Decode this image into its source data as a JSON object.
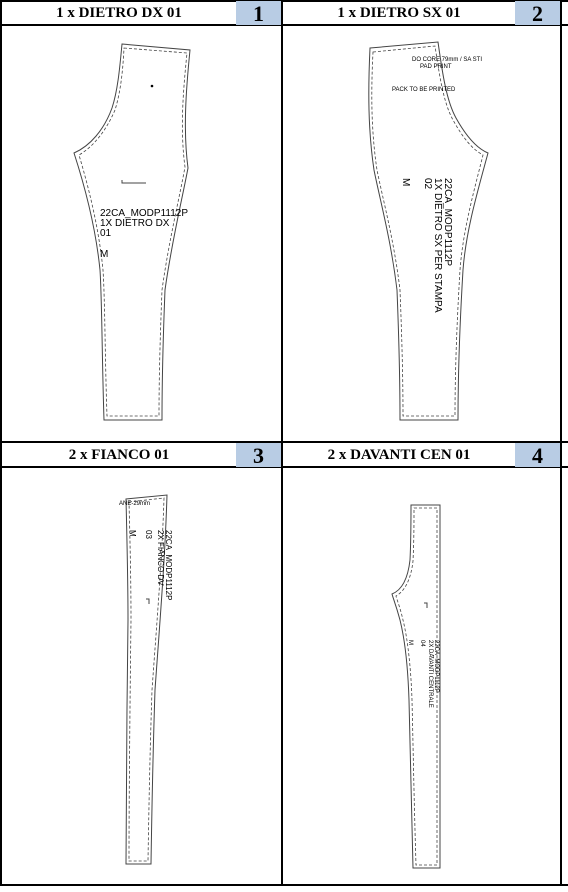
{
  "panels": [
    {
      "title": "1 x DIETRO DX 01",
      "number": "1",
      "labels": {
        "l1": "22CA_MODP1112P",
        "l2": "1X DIETRO DX",
        "l3": "01",
        "size": "M"
      }
    },
    {
      "title": "1 x DIETRO SX 01",
      "number": "2",
      "labels": {
        "l1": "22CA_MODP1112P",
        "l2": "1X DIETRO SX PER STAMPA",
        "l3": "02",
        "size": "M",
        "note1": "DO CORE 79mm / SA STI",
        "note2": "PAD PRINT",
        "note3": "PACK TO BE PRINTED"
      }
    },
    {
      "title": "2 x FIANCO 01",
      "number": "3",
      "labels": {
        "l1": "22CA_MODP1112P",
        "l2": "2X FIANCO DV",
        "l3": "03",
        "size": "M",
        "note1": "ANE-29mm"
      }
    },
    {
      "title": "2 x DAVANTI CEN 01",
      "number": "4",
      "labels": {
        "l1": "22CA_MODP1112P",
        "l2": "2X DAVANTI CENTRALE",
        "l3": "04",
        "size": "M"
      }
    }
  ]
}
